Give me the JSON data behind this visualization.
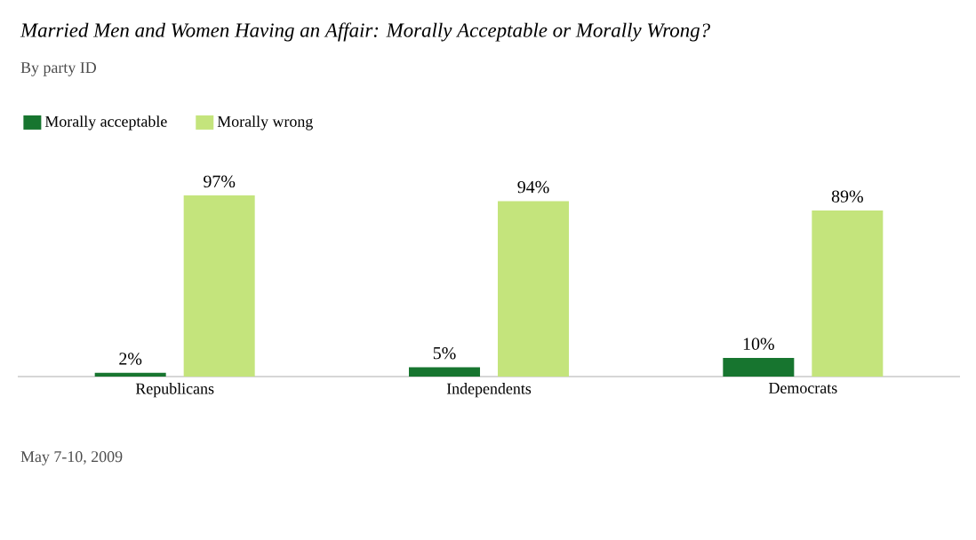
{
  "chart_data": {
    "type": "bar",
    "title": "Married Men and Women Having an Affair: Morally Acceptable or Morally Wrong?",
    "subtitle": "By party ID",
    "categories": [
      "Republicans",
      "Independents",
      "Democrats"
    ],
    "series": [
      {
        "name": "Morally acceptable",
        "color": "#17752f",
        "values": [
          2,
          5,
          10
        ],
        "value_labels": [
          "2%",
          "5%",
          "10%"
        ]
      },
      {
        "name": "Morally wrong",
        "color": "#c4e47c",
        "values": [
          97,
          94,
          89
        ],
        "value_labels": [
          "97%",
          "94%",
          "89%"
        ]
      }
    ],
    "legend": "top left",
    "annotations": [
      "May 7-10, 2009"
    ]
  }
}
